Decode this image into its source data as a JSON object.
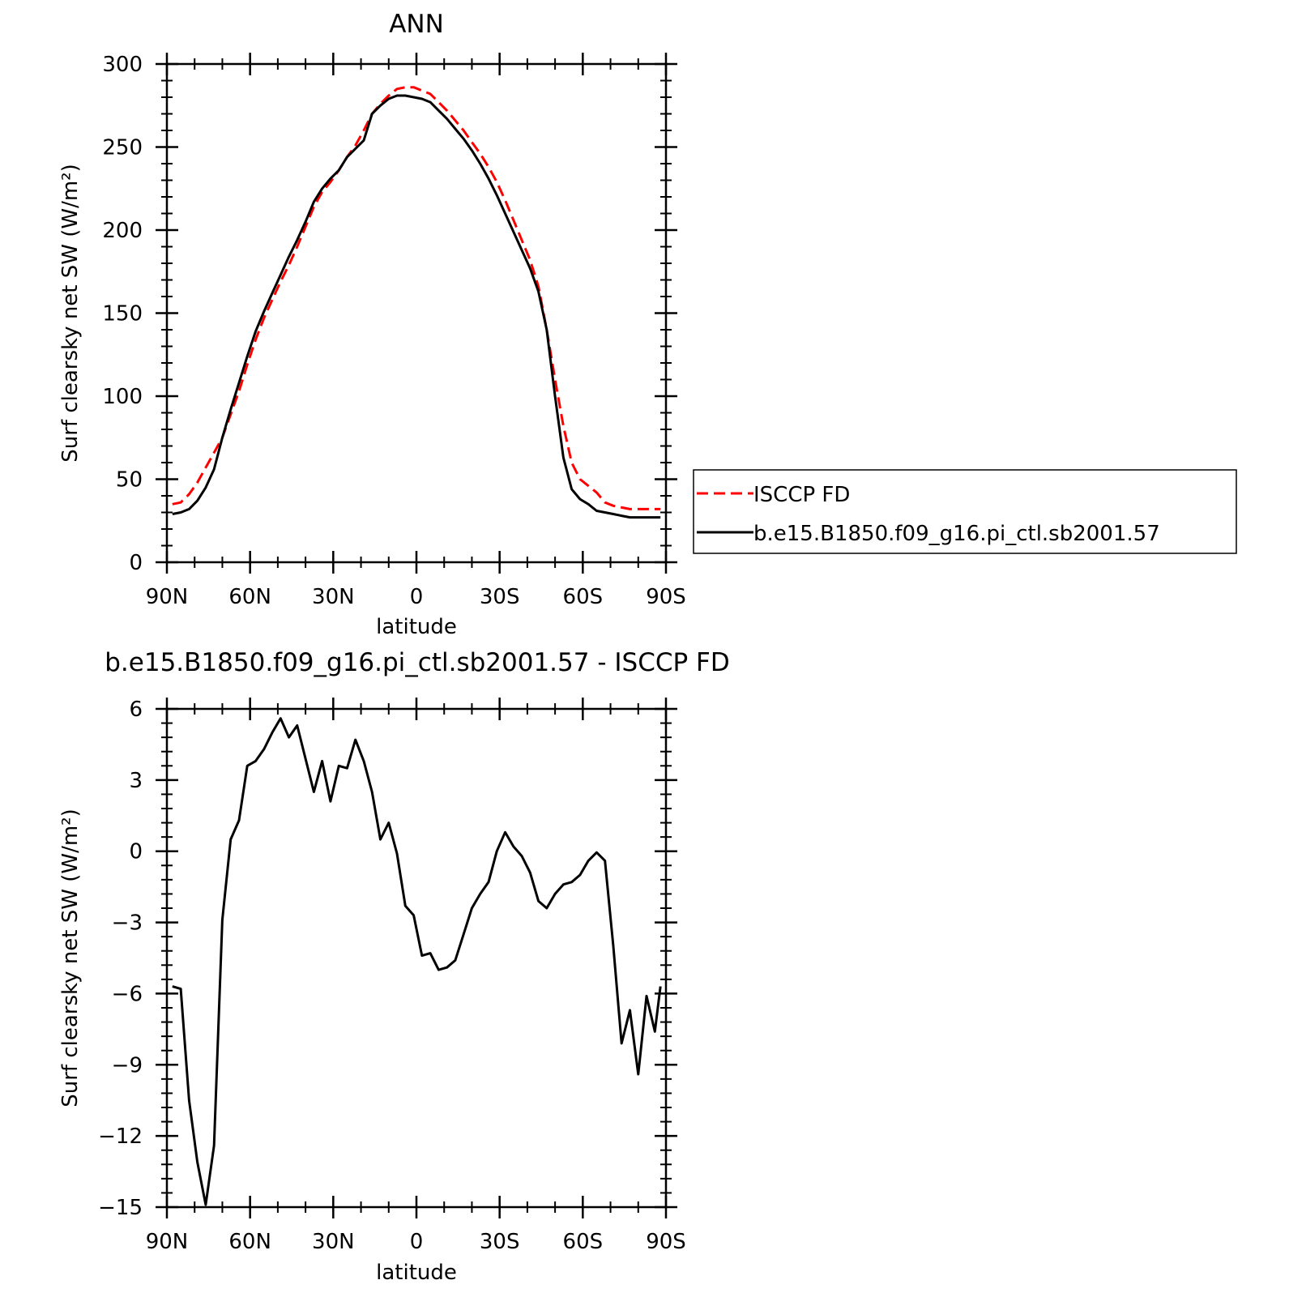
{
  "chart_data": [
    {
      "type": "line",
      "title": "ANN",
      "xlabel": "latitude",
      "ylabel": "Surf clearsky net SW (W/m²)",
      "ylim": [
        0,
        300
      ],
      "xlim": [
        90,
        -90
      ],
      "y_ticks": [
        0,
        50,
        100,
        150,
        200,
        250,
        300
      ],
      "x_ticks": [
        {
          "value": 90,
          "label": "90N"
        },
        {
          "value": 60,
          "label": "60N"
        },
        {
          "value": 30,
          "label": "30N"
        },
        {
          "value": 0,
          "label": "0"
        },
        {
          "value": -30,
          "label": "30S"
        },
        {
          "value": -60,
          "label": "60S"
        },
        {
          "value": -90,
          "label": "90S"
        }
      ],
      "legend_position": "right",
      "series": [
        {
          "name": "ISCCP FD",
          "color": "#ff0000",
          "dash": "dashed",
          "x": [
            88,
            85,
            82,
            79,
            76,
            73,
            70,
            67,
            64,
            61,
            58,
            55,
            52,
            49,
            46,
            43,
            40,
            37,
            34,
            31,
            28,
            25,
            22,
            19,
            16,
            13,
            10,
            7,
            4,
            1,
            -2,
            -5,
            -8,
            -11,
            -14,
            -17,
            -20,
            -23,
            -26,
            -29,
            -32,
            -35,
            -38,
            -41,
            -44,
            -47,
            -50,
            -53,
            -56,
            -59,
            -62,
            -65,
            -68,
            -71,
            -74,
            -77,
            -80,
            -83,
            -86,
            -88
          ],
          "y": [
            35,
            36,
            41,
            48,
            57,
            66,
            75,
            89,
            103,
            119,
            134,
            147,
            158,
            169,
            179,
            190,
            202,
            214,
            223,
            229,
            236,
            244,
            251,
            260,
            270,
            276,
            281,
            285,
            286,
            286,
            284,
            282,
            277,
            272,
            266,
            260,
            253,
            246,
            238,
            229,
            218,
            206,
            194,
            182,
            166,
            140,
            110,
            82,
            60,
            50,
            46,
            42,
            36,
            34,
            33,
            32,
            32,
            32,
            32,
            32
          ]
        },
        {
          "name": "b.e15.B1850.f09_g16.pi_ctl.sb2001.57",
          "color": "#000000",
          "dash": "solid",
          "x": [
            88,
            85,
            82,
            79,
            76,
            73,
            70,
            67,
            64,
            61,
            58,
            55,
            52,
            49,
            46,
            43,
            40,
            37,
            34,
            31,
            28,
            25,
            22,
            19,
            16,
            13,
            10,
            7,
            4,
            1,
            -2,
            -5,
            -8,
            -11,
            -14,
            -17,
            -20,
            -23,
            -26,
            -29,
            -32,
            -35,
            -38,
            -41,
            -44,
            -47,
            -50,
            -53,
            -56,
            -59,
            -62,
            -65,
            -68,
            -71,
            -74,
            -77,
            -80,
            -83,
            -86,
            -88
          ],
          "y": [
            29,
            30,
            32,
            37,
            45,
            56,
            75,
            92,
            108,
            124,
            139,
            151,
            162,
            173,
            184,
            194,
            205,
            217,
            225,
            231,
            236,
            244,
            249,
            254,
            270,
            275,
            279,
            281,
            281,
            280,
            279,
            277,
            272,
            267,
            261,
            255,
            248,
            240,
            231,
            221,
            210,
            199,
            188,
            177,
            163,
            140,
            100,
            63,
            44,
            38,
            35,
            31,
            30,
            29,
            28,
            27,
            27,
            27,
            27,
            27
          ]
        }
      ]
    },
    {
      "type": "line",
      "title": "b.e15.B1850.f09_g16.pi_ctl.sb2001.57 - ISCCP FD",
      "xlabel": "latitude",
      "ylabel": "Surf clearsky net SW (W/m²)",
      "ylim": [
        -15,
        6
      ],
      "xlim": [
        90,
        -90
      ],
      "y_ticks": [
        -15,
        -12,
        -9,
        -6,
        -3,
        0,
        3,
        6
      ],
      "y_tick_labels": [
        "−15",
        "−12",
        "−9",
        "−6",
        "−3",
        "0",
        "3",
        "6"
      ],
      "x_ticks": [
        {
          "value": 90,
          "label": "90N"
        },
        {
          "value": 60,
          "label": "60N"
        },
        {
          "value": 30,
          "label": "30N"
        },
        {
          "value": 0,
          "label": "0"
        },
        {
          "value": -30,
          "label": "30S"
        },
        {
          "value": -60,
          "label": "60S"
        },
        {
          "value": -90,
          "label": "90S"
        }
      ],
      "series": [
        {
          "color": "#000000",
          "dash": "solid",
          "x": [
            88,
            85,
            82,
            79,
            76,
            73,
            70,
            67,
            64,
            61,
            58,
            55,
            52,
            49,
            46,
            43,
            40,
            37,
            34,
            31,
            28,
            25,
            22,
            19,
            16,
            13,
            10,
            7,
            4,
            1,
            -2,
            -5,
            -8,
            -11,
            -14,
            -17,
            -20,
            -23,
            -26,
            -29,
            -32,
            -35,
            -38,
            -41,
            -44,
            -47,
            -50,
            -53,
            -56,
            -59,
            -62,
            -65,
            -68,
            -71,
            -74,
            -77,
            -80,
            -83,
            -86,
            -88
          ],
          "y": [
            -5.7,
            -5.8,
            -10.5,
            -13.1,
            -14.9,
            -12.4,
            -2.9,
            0.5,
            1.3,
            3.6,
            3.8,
            4.3,
            5.0,
            5.6,
            4.8,
            5.3,
            3.9,
            2.5,
            3.8,
            2.1,
            3.6,
            3.5,
            4.7,
            3.8,
            2.5,
            0.5,
            1.2,
            -0.1,
            -2.3,
            -2.7,
            -4.4,
            -4.3,
            -5.0,
            -4.9,
            -4.6,
            -3.5,
            -2.4,
            -1.8,
            -1.3,
            0.0,
            0.8,
            0.2,
            -0.2,
            -0.9,
            -2.1,
            -2.4,
            -1.8,
            -1.4,
            -1.3,
            -1.0,
            -0.4,
            -0.05,
            -0.4,
            -4.0,
            -8.1,
            -6.7,
            -9.4,
            -6.1,
            -7.6,
            -5.7
          ]
        }
      ]
    }
  ]
}
